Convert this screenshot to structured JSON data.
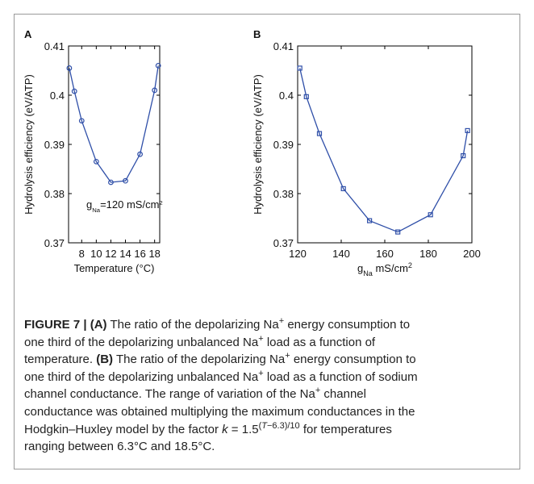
{
  "chart_data": [
    {
      "type": "line",
      "panel": "A",
      "ylabel": [
        {
          "text": "Hydrolysis efficiency (eV/ATP)"
        }
      ],
      "xlabel": [
        {
          "text": "Temperature (°C)"
        }
      ],
      "annotation": [
        {
          "text": "g"
        },
        {
          "text": "Na",
          "style": "sub"
        },
        {
          "text": "=120 mS/cm"
        },
        {
          "text": "2",
          "style": "sup"
        }
      ],
      "x": [
        6.3,
        7,
        8,
        10,
        12,
        14,
        16,
        18,
        18.5
      ],
      "series": [
        {
          "color": "#2f4fa8",
          "marker": "circle",
          "values": [
            0.4055,
            0.4008,
            0.3948,
            0.3865,
            0.3823,
            0.3826,
            0.388,
            0.401,
            0.406
          ]
        }
      ],
      "xlim": [
        6.2,
        18.7
      ],
      "xticks": [
        8,
        10,
        12,
        14,
        16,
        18
      ],
      "ylim": [
        0.37,
        0.41
      ],
      "yticks": [
        0.37,
        0.38,
        0.39,
        0.4,
        0.41
      ]
    },
    {
      "type": "line",
      "panel": "B",
      "ylabel": [
        {
          "text": "Hydrolysis efficiency (eV/ATP)"
        }
      ],
      "xlabel": [
        {
          "text": "g"
        },
        {
          "text": "Na",
          "style": "sub"
        },
        {
          "text": " mS/cm"
        },
        {
          "text": "2",
          "style": "sup"
        }
      ],
      "x": [
        121,
        124,
        130,
        141,
        153,
        166,
        181,
        196,
        198
      ],
      "series": [
        {
          "color": "#2f4fa8",
          "marker": "square",
          "values": [
            0.4055,
            0.3997,
            0.3922,
            0.381,
            0.3745,
            0.3722,
            0.3757,
            0.3877,
            0.3928
          ]
        }
      ],
      "xlim": [
        120,
        200
      ],
      "xticks": [
        120,
        140,
        160,
        180,
        200
      ],
      "ylim": [
        0.37,
        0.41
      ],
      "yticks": [
        0.37,
        0.38,
        0.39,
        0.4,
        0.41
      ]
    }
  ],
  "caption": [
    [
      {
        "text": "FIGURE 7 | (A)",
        "style": "bold"
      },
      {
        "text": " The ratio of the depolarizing Na"
      },
      {
        "text": "+",
        "style": "sup"
      },
      {
        "text": " energy consumption to"
      }
    ],
    [
      {
        "text": "one third of the depolarizing unbalanced Na"
      },
      {
        "text": "+",
        "style": "sup"
      },
      {
        "text": " load as a function of"
      }
    ],
    [
      {
        "text": "temperature. "
      },
      {
        "text": "(B)",
        "style": "bold"
      },
      {
        "text": " The ratio of the depolarizing Na"
      },
      {
        "text": "+",
        "style": "sup"
      },
      {
        "text": " energy consumption to"
      }
    ],
    [
      {
        "text": "one third of the depolarizing unbalanced Na"
      },
      {
        "text": "+",
        "style": "sup"
      },
      {
        "text": " load as a function of sodium"
      }
    ],
    [
      {
        "text": "channel conductance. The range of variation of the Na"
      },
      {
        "text": "+",
        "style": "sup"
      },
      {
        "text": " channel"
      }
    ],
    [
      {
        "text": "conductance was obtained multiplying the maximum conductances in the"
      }
    ],
    [
      {
        "text": "Hodgkin–Huxley model by the factor "
      },
      {
        "text": "k",
        "style": "italic"
      },
      {
        "text": " = 1.5"
      },
      {
        "text": "(",
        "style": "sup"
      },
      {
        "text": "T",
        "style": "sup-italic"
      },
      {
        "text": "−6.3)/10",
        "style": "sup"
      },
      {
        "text": " for temperatures"
      }
    ],
    [
      {
        "text": "ranging between 6.3°C and 18.5°C."
      }
    ]
  ]
}
